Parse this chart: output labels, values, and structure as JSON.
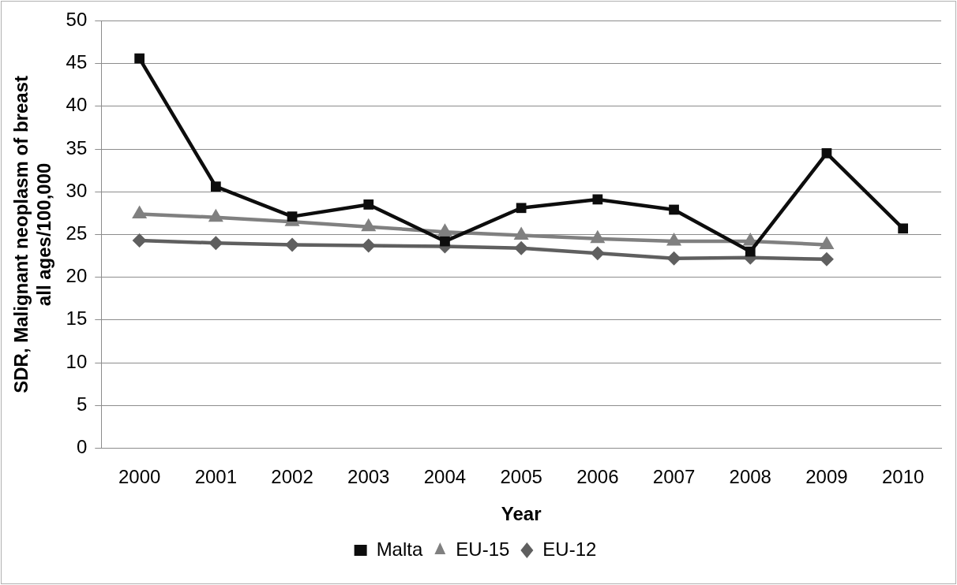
{
  "chart_data": {
    "type": "line",
    "xlabel": "Year",
    "ylabel": "SDR, Malignant neoplasm of breast\nall ages/100,000",
    "categories": [
      "2000",
      "2001",
      "2002",
      "2003",
      "2004",
      "2005",
      "2006",
      "2007",
      "2008",
      "2009",
      "2010"
    ],
    "series": [
      {
        "name": "Malta",
        "color": "#0d0d0d",
        "marker": "square",
        "values": [
          45.6,
          30.6,
          27.1,
          28.5,
          24.2,
          28.1,
          29.1,
          27.9,
          23.0,
          34.5,
          25.7
        ]
      },
      {
        "name": "EU-15",
        "color": "#808080",
        "marker": "triangle",
        "values": [
          27.4,
          27.0,
          26.5,
          25.9,
          25.3,
          24.9,
          24.5,
          24.2,
          24.2,
          23.8,
          null
        ]
      },
      {
        "name": "EU-12",
        "color": "#5f5f5f",
        "marker": "diamond",
        "values": [
          24.3,
          24.0,
          23.8,
          23.7,
          23.6,
          23.4,
          22.8,
          22.2,
          22.3,
          22.1,
          null
        ]
      }
    ],
    "ylim": [
      0,
      50
    ],
    "yticks": [
      0,
      5,
      10,
      15,
      20,
      25,
      30,
      35,
      40,
      45,
      50
    ],
    "grid": "y",
    "legend": "bottom",
    "line_style": "solid"
  }
}
